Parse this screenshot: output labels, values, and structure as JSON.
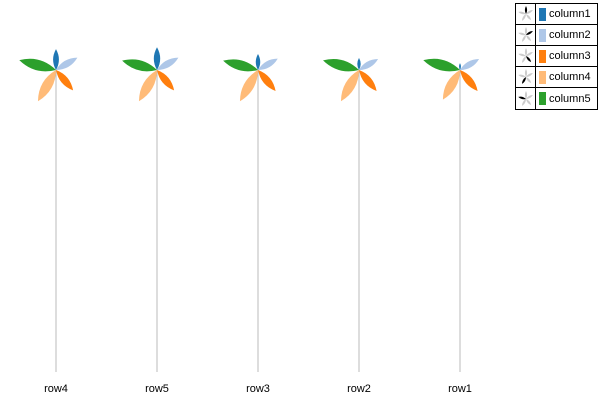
{
  "chart_data": {
    "type": "pinwheel",
    "categories": [
      "row4",
      "row5",
      "row3",
      "row2",
      "row1"
    ],
    "columns": [
      "column1",
      "column2",
      "column3",
      "column4",
      "column5"
    ],
    "colors": {
      "column1": "#1f77b4",
      "column2": "#aec7e8",
      "column3": "#ff7f0e",
      "column4": "#ffbb78",
      "column5": "#2ca02c"
    },
    "series": [
      {
        "name": "column1",
        "values": [
          0.55,
          0.6,
          0.42,
          0.32,
          0.18
        ]
      },
      {
        "name": "column2",
        "values": [
          0.65,
          0.65,
          0.6,
          0.58,
          0.58
        ]
      },
      {
        "name": "column3",
        "values": [
          0.7,
          0.7,
          0.72,
          0.72,
          0.72
        ]
      },
      {
        "name": "column4",
        "values": [
          0.95,
          0.95,
          0.95,
          0.95,
          0.9
        ]
      },
      {
        "name": "column5",
        "values": [
          1.0,
          0.95,
          0.95,
          0.98,
          1.0
        ]
      }
    ],
    "heights": [
      0.98,
      0.96,
      0.94,
      0.92,
      0.88
    ],
    "ylim": [
      0,
      1
    ],
    "legend_position": "top-right",
    "grid": false
  }
}
